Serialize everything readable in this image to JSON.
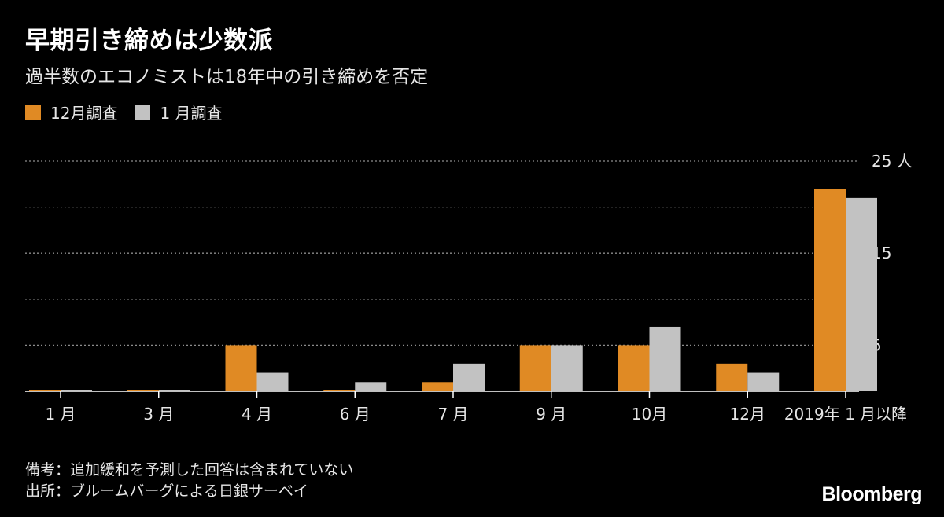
{
  "chart_data": {
    "type": "bar",
    "title": "早期引き締めは少数派",
    "subtitle": "過半数のエコノミストは18年中の引き締めを否定",
    "categories": [
      "1 月",
      "3 月",
      "4 月",
      "6 月",
      "7 月",
      "9 月",
      "10月",
      "12月",
      "2019年 1 月以降"
    ],
    "series": [
      {
        "name": "12月調査",
        "color": "#e08a24",
        "values": [
          0,
          0,
          5,
          0,
          1,
          5,
          5,
          3,
          22
        ]
      },
      {
        "name": "1 月調査",
        "color": "#c2c2c2",
        "values": [
          0,
          0,
          2,
          1,
          3,
          5,
          7,
          2,
          21
        ]
      }
    ],
    "yticks": [
      {
        "value": 25,
        "label": "25 人"
      },
      {
        "value": 20,
        "label": ""
      },
      {
        "value": 15,
        "label": "15"
      },
      {
        "value": 10,
        "label": ""
      },
      {
        "value": 5,
        "label": "5"
      }
    ],
    "ylim": [
      0,
      25
    ],
    "grid": true,
    "legend_position": "top-left",
    "xlabel": "",
    "ylabel": ""
  },
  "footer": {
    "note": "備考：追加緩和を予測した回答は含まれていない",
    "source": "出所：ブルームバーグによる日銀サーベイ"
  },
  "brand": "Bloomberg"
}
